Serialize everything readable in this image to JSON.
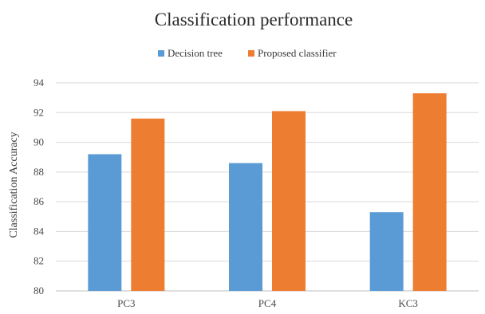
{
  "chart_data": {
    "type": "bar",
    "title": "Classification  performance",
    "xlabel": "",
    "ylabel": "Classification Accuracy",
    "categories": [
      "PC3",
      "PC4",
      "KC3"
    ],
    "series": [
      {
        "name": "Decision tree",
        "color": "#5b9bd5",
        "values": [
          89.2,
          88.6,
          85.3
        ]
      },
      {
        "name": "Proposed classifier",
        "color": "#ed7d31",
        "values": [
          91.6,
          92.1,
          93.3
        ]
      }
    ],
    "ylim": [
      80,
      94
    ],
    "yticks": [
      80,
      82,
      84,
      86,
      88,
      90,
      92,
      94
    ],
    "grid": true,
    "legend_position": "top"
  }
}
